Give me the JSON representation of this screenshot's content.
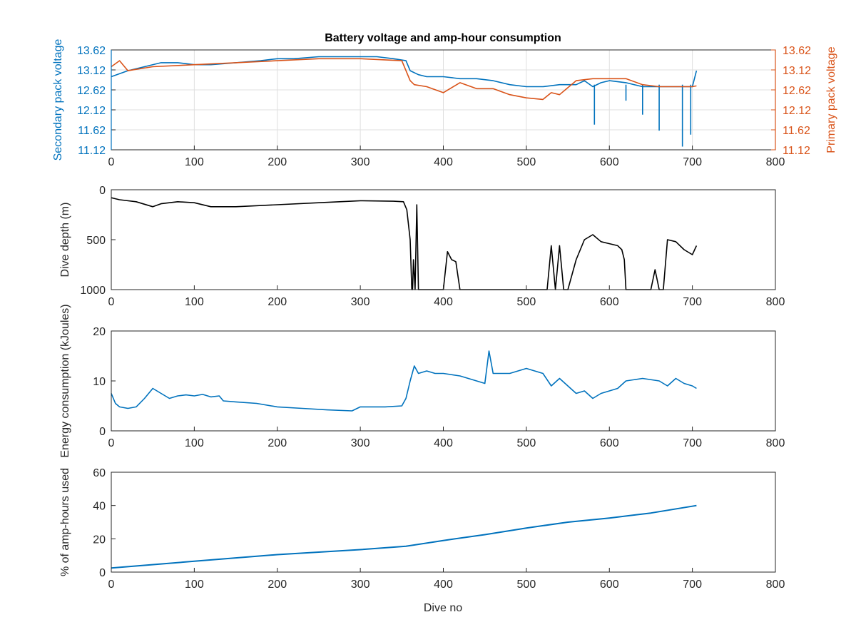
{
  "figure": {
    "title": "Battery voltage and amp-hour consumption",
    "xlabel": "Dive no",
    "colors": {
      "blue": "#0072BD",
      "orange": "#D95319",
      "black": "#000000",
      "axis": "#262626",
      "grid": "#dfdfdf"
    }
  },
  "chart_data": [
    {
      "type": "line",
      "title": "Battery voltage and amp-hour consumption",
      "xlabel": "",
      "ylabel": "Secondary pack voltage",
      "ylabel_right": "Primary pack voltage",
      "xlim": [
        0,
        800
      ],
      "ylim": [
        11.12,
        13.62
      ],
      "xticks": [
        "0",
        "100",
        "200",
        "300",
        "400",
        "500",
        "600",
        "700",
        "800"
      ],
      "yticks": [
        "11.12",
        "11.62",
        "12.12",
        "12.62",
        "13.12",
        "13.62"
      ],
      "grid": true,
      "series": [
        {
          "name": "Secondary pack voltage",
          "color": "#0072BD",
          "x": [
            0,
            20,
            40,
            60,
            80,
            100,
            120,
            150,
            180,
            200,
            220,
            250,
            280,
            300,
            320,
            340,
            355,
            360,
            370,
            380,
            400,
            420,
            440,
            460,
            480,
            500,
            520,
            540,
            560,
            570,
            580,
            590,
            600,
            620,
            640,
            660,
            680,
            700,
            705
          ],
          "y": [
            12.95,
            13.1,
            13.2,
            13.3,
            13.3,
            13.25,
            13.25,
            13.3,
            13.35,
            13.4,
            13.4,
            13.45,
            13.45,
            13.45,
            13.45,
            13.4,
            13.35,
            13.1,
            13.0,
            12.95,
            12.95,
            12.9,
            12.9,
            12.85,
            12.75,
            12.7,
            12.7,
            12.75,
            12.75,
            12.85,
            12.7,
            12.8,
            12.85,
            12.8,
            12.7,
            12.7,
            12.7,
            12.7,
            13.1
          ],
          "spike_dips": [
            [
              582,
              11.75
            ],
            [
              620,
              12.35
            ],
            [
              660,
              11.6
            ],
            [
              688,
              11.2
            ],
            [
              698,
              11.5
            ],
            [
              640,
              12.0
            ]
          ]
        },
        {
          "name": "Primary pack voltage",
          "color": "#D95319",
          "x": [
            0,
            10,
            20,
            50,
            100,
            150,
            200,
            250,
            300,
            350,
            360,
            365,
            380,
            400,
            420,
            440,
            460,
            480,
            500,
            520,
            530,
            540,
            560,
            580,
            600,
            620,
            640,
            660,
            680,
            700,
            705
          ],
          "y": [
            13.2,
            13.35,
            13.1,
            13.2,
            13.25,
            13.3,
            13.35,
            13.4,
            13.4,
            13.35,
            12.85,
            12.75,
            12.7,
            12.55,
            12.8,
            12.65,
            12.65,
            12.5,
            12.42,
            12.38,
            12.55,
            12.5,
            12.85,
            12.9,
            12.9,
            12.9,
            12.75,
            12.7,
            12.7,
            12.7,
            12.72
          ]
        }
      ]
    },
    {
      "type": "line",
      "xlabel": "",
      "ylabel": "Dive depth (m)",
      "xlim": [
        0,
        800
      ],
      "ylim": [
        0,
        1000
      ],
      "y_reversed": true,
      "xticks": [
        "0",
        "100",
        "200",
        "300",
        "400",
        "500",
        "600",
        "700",
        "800"
      ],
      "yticks": [
        "0",
        "500",
        "1000"
      ],
      "series": [
        {
          "color": "#000000",
          "x": [
            0,
            5,
            10,
            30,
            50,
            60,
            80,
            100,
            120,
            150,
            200,
            250,
            300,
            340,
            352,
            356,
            360,
            362,
            363,
            364,
            366,
            368,
            370,
            371,
            372,
            375,
            400,
            405,
            410,
            415,
            420,
            425,
            500,
            525,
            530,
            535,
            540,
            545,
            550,
            560,
            570,
            580,
            590,
            600,
            610,
            615,
            618,
            620,
            650,
            655,
            660,
            665,
            670,
            680,
            690,
            700,
            705
          ],
          "y": [
            80,
            90,
            100,
            120,
            170,
            140,
            120,
            130,
            170,
            170,
            150,
            130,
            110,
            115,
            120,
            200,
            500,
            1000,
            1000,
            700,
            1000,
            150,
            1000,
            1000,
            1000,
            1000,
            1000,
            620,
            700,
            720,
            1000,
            1000,
            1000,
            1000,
            560,
            1000,
            560,
            1000,
            1000,
            700,
            500,
            450,
            520,
            540,
            560,
            600,
            700,
            1000,
            1000,
            800,
            1000,
            1000,
            500,
            520,
            600,
            650,
            560
          ]
        }
      ]
    },
    {
      "type": "line",
      "xlabel": "",
      "ylabel": "Energy consumption (kJoules)",
      "xlim": [
        0,
        800
      ],
      "ylim": [
        0,
        20
      ],
      "xticks": [
        "0",
        "100",
        "200",
        "300",
        "400",
        "500",
        "600",
        "700",
        "800"
      ],
      "yticks": [
        "0",
        "10",
        "20"
      ],
      "series": [
        {
          "color": "#0072BD",
          "x": [
            0,
            5,
            10,
            20,
            30,
            40,
            50,
            60,
            70,
            80,
            90,
            100,
            110,
            120,
            130,
            135,
            150,
            175,
            200,
            230,
            260,
            290,
            300,
            330,
            350,
            355,
            360,
            365,
            370,
            380,
            390,
            400,
            420,
            440,
            450,
            455,
            460,
            480,
            500,
            520,
            530,
            540,
            560,
            570,
            580,
            590,
            600,
            610,
            620,
            640,
            660,
            670,
            680,
            690,
            700,
            705
          ],
          "y": [
            7.5,
            5.5,
            4.8,
            4.5,
            4.8,
            6.5,
            8.5,
            7.5,
            6.5,
            7.0,
            7.2,
            7.0,
            7.3,
            6.8,
            7.0,
            6.0,
            5.8,
            5.5,
            4.8,
            4.5,
            4.2,
            4.0,
            4.8,
            4.8,
            5.0,
            6.5,
            10.0,
            13.0,
            11.5,
            12.0,
            11.5,
            11.5,
            11.0,
            10.0,
            9.5,
            16.0,
            11.5,
            11.5,
            12.5,
            11.5,
            9.0,
            10.5,
            7.5,
            8.0,
            6.5,
            7.5,
            8.0,
            8.5,
            10.0,
            10.5,
            10.0,
            9.0,
            10.5,
            9.5,
            9.0,
            8.5
          ]
        }
      ]
    },
    {
      "type": "line",
      "xlabel": "Dive no",
      "ylabel": "% of amp-hours used",
      "xlim": [
        0,
        800
      ],
      "ylim": [
        0,
        60
      ],
      "xticks": [
        "0",
        "100",
        "200",
        "300",
        "400",
        "500",
        "600",
        "700",
        "800"
      ],
      "yticks": [
        "0",
        "20",
        "40",
        "60"
      ],
      "series": [
        {
          "color": "#0072BD",
          "x": [
            0,
            100,
            200,
            300,
            355,
            400,
            450,
            500,
            550,
            600,
            650,
            705
          ],
          "y": [
            2.5,
            6.5,
            10.5,
            13.5,
            15.5,
            19.0,
            22.5,
            26.5,
            30.0,
            32.5,
            35.5,
            40.0
          ]
        }
      ]
    }
  ]
}
